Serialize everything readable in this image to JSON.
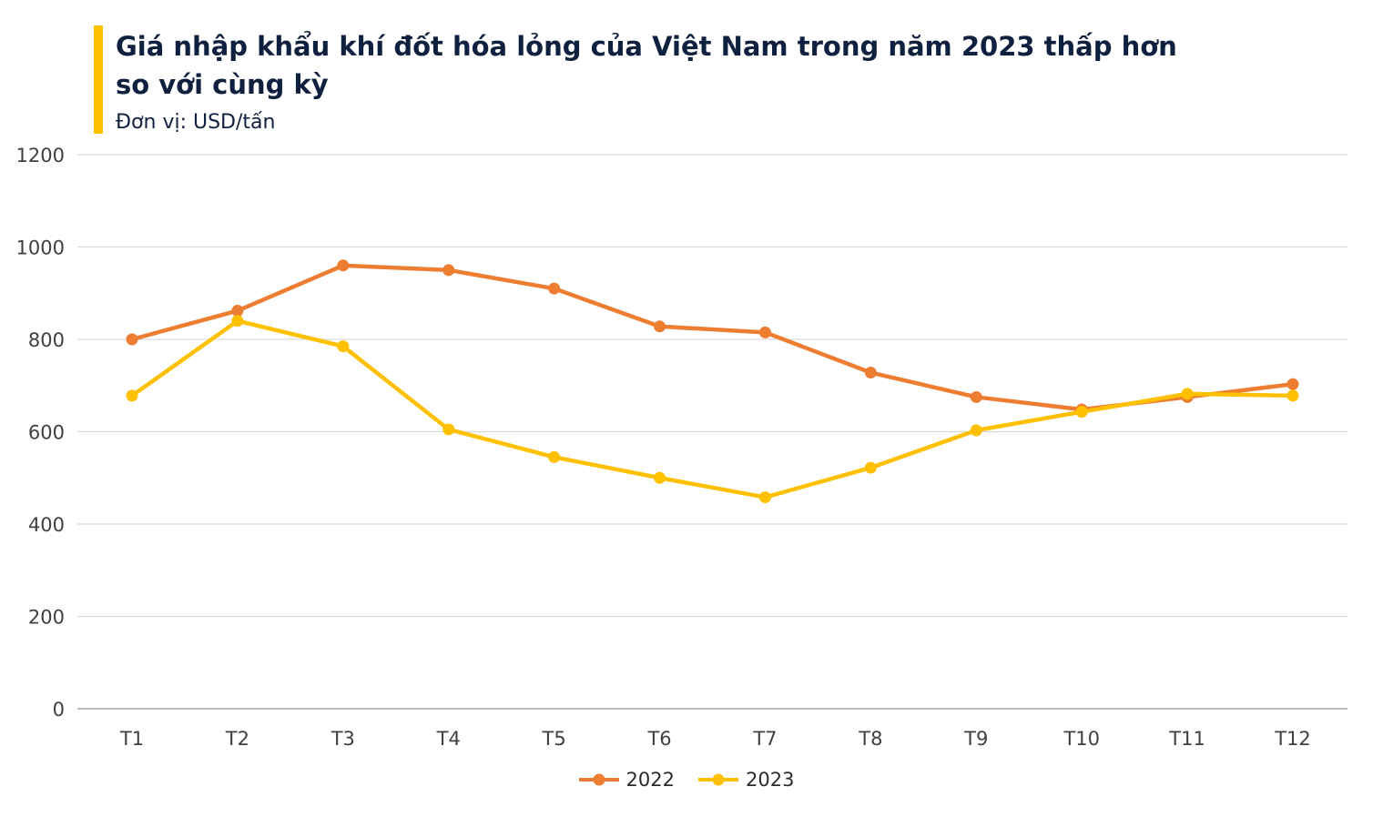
{
  "header": {
    "title": "Giá nhập khẩu khí đốt hóa lỏng của Việt Nam trong năm 2023 thấp hơn so với cùng kỳ",
    "subtitle": "Đơn vị: USD/tấn",
    "accent_color": "#FFC000"
  },
  "chart_data": {
    "type": "line",
    "title": "Giá nhập khẩu khí đốt hóa lỏng của Việt Nam trong năm 2023 thấp hơn so với cùng kỳ",
    "unit": "USD/tấn",
    "categories": [
      "T1",
      "T2",
      "T3",
      "T4",
      "T5",
      "T6",
      "T7",
      "T8",
      "T9",
      "T10",
      "T11",
      "T12"
    ],
    "series": [
      {
        "name": "2022",
        "color": "#ED7D31",
        "values": [
          800,
          862,
          960,
          950,
          910,
          828,
          815,
          728,
          675,
          648,
          675,
          703
        ]
      },
      {
        "name": "2023",
        "color": "#FFC000",
        "values": [
          678,
          840,
          785,
          605,
          545,
          500,
          458,
          522,
          603,
          643,
          682,
          678
        ]
      }
    ],
    "xlabel": "",
    "ylabel": "",
    "ylim": [
      0,
      1200
    ],
    "yticks": [
      0,
      200,
      400,
      600,
      800,
      1000,
      1200
    ],
    "grid": true,
    "legend_position": "bottom",
    "grid_color": "#d9d9d9",
    "axis_color": "#a6a6a6",
    "tick_label_color": "#404040"
  }
}
